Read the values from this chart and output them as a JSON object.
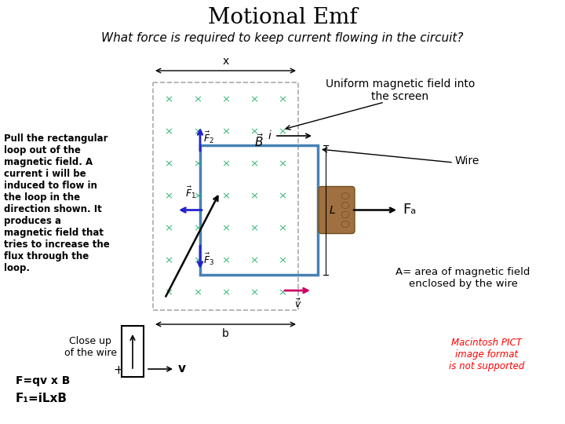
{
  "title": "Motional Emf",
  "subtitle": "What force is required to keep current flowing in the circuit?",
  "title_fontsize": 20,
  "subtitle_fontsize": 11,
  "bg_color": "#ffffff",
  "left_text": "Pull the rectangular\nloop out of the\nmagnetic field. A\ncurrent i will be\ninduced to flow in\nthe loop in the\ndirection shown. It\nproduces a\nmagnetic field that\ntries to increase the\nflux through the\nloop.",
  "bottom_left_label": "Close up\nof the wire",
  "formula1": "F=qv x B",
  "formula2": "F₁=iLxB",
  "uniform_label": "Uniform magnetic field into\nthe screen",
  "wire_label": "Wire",
  "FA_label": "Fₐ",
  "area_label": "A= area of magnetic field\nenclosed by the wire",
  "macintosh_label": "Macintosh PICT\nimage format\nis not supported",
  "x_label": "x",
  "b_label": "b",
  "L_label": "L",
  "i_label": "i",
  "v_label": "v",
  "x_color": "#3cb878",
  "wire_rect_color": "#4682B4",
  "dashed_rect_color": "#aaaaaa",
  "force_arrow_color": "#2222cc",
  "velocity_arrow_color": "#cc0066",
  "hand_color": "#a07040",
  "hand_edge_color": "#705020"
}
